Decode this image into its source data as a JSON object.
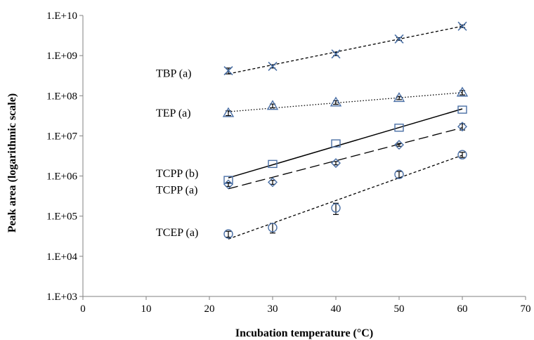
{
  "chart_data": {
    "type": "scatter",
    "title": "",
    "xlabel": "Incubation temperature (°C)",
    "ylabel": "Peak area (logarithmic scale)",
    "xlim": [
      0,
      70
    ],
    "x_ticks": [
      "0",
      "10",
      "20",
      "30",
      "40",
      "50",
      "60",
      "70"
    ],
    "ylim": [
      1000,
      10000000000
    ],
    "y_scale": "log",
    "y_ticks": [
      "1.E+03",
      "1.E+04",
      "1.E+05",
      "1.E+06",
      "1.E+07",
      "1.E+08",
      "1.E+09",
      "1.E+10"
    ],
    "grid": false,
    "legend": "none",
    "marker_color": "#4a6fa5",
    "line_color": "#000000",
    "series": [
      {
        "name": "TBP (a)",
        "marker": "x",
        "line_style": "short-dash",
        "x": [
          23,
          30,
          40,
          50,
          60
        ],
        "y": [
          420000000,
          540000000,
          1100000000,
          2600000000,
          5400000000
        ],
        "yerr": [
          70000000,
          50000000,
          100000000,
          200000000,
          400000000
        ],
        "trend": [
          350000000,
          5400000000
        ]
      },
      {
        "name": "TEP (a)",
        "marker": "triangle",
        "line_style": "dotted",
        "x": [
          23,
          30,
          40,
          50,
          60
        ],
        "y": [
          37000000,
          56000000,
          68000000,
          88000000,
          120000000
        ],
        "yerr": [
          5000000,
          6000000,
          7000000,
          8000000,
          15000000
        ],
        "trend": [
          40000000,
          120000000
        ]
      },
      {
        "name": "TCPP (b)",
        "marker": "square",
        "line_style": "solid",
        "x": [
          23,
          30,
          40,
          50,
          60
        ],
        "y": [
          800000,
          2000000,
          6500000,
          16000000,
          45000000
        ],
        "yerr": [
          0,
          0,
          0,
          0,
          0
        ],
        "trend": [
          900000,
          47000000
        ]
      },
      {
        "name": "TCPP (a)",
        "marker": "diamond",
        "line_style": "long-dash",
        "x": [
          23,
          30,
          40,
          50,
          60
        ],
        "y": [
          620000,
          700000,
          2100000,
          6000000,
          17000000
        ],
        "yerr": [
          70000,
          80000,
          200000,
          500000,
          3000000
        ],
        "trend": [
          480000,
          16000000
        ]
      },
      {
        "name": "TCEP (a)",
        "marker": "circle",
        "line_style": "short-dash",
        "x": [
          23,
          30,
          40,
          50,
          60
        ],
        "y": [
          36000,
          52000,
          160000,
          1100000,
          3400000
        ],
        "yerr": [
          6000,
          14000,
          50000,
          200000,
          500000
        ],
        "trend": [
          27000,
          3300000
        ]
      }
    ]
  }
}
